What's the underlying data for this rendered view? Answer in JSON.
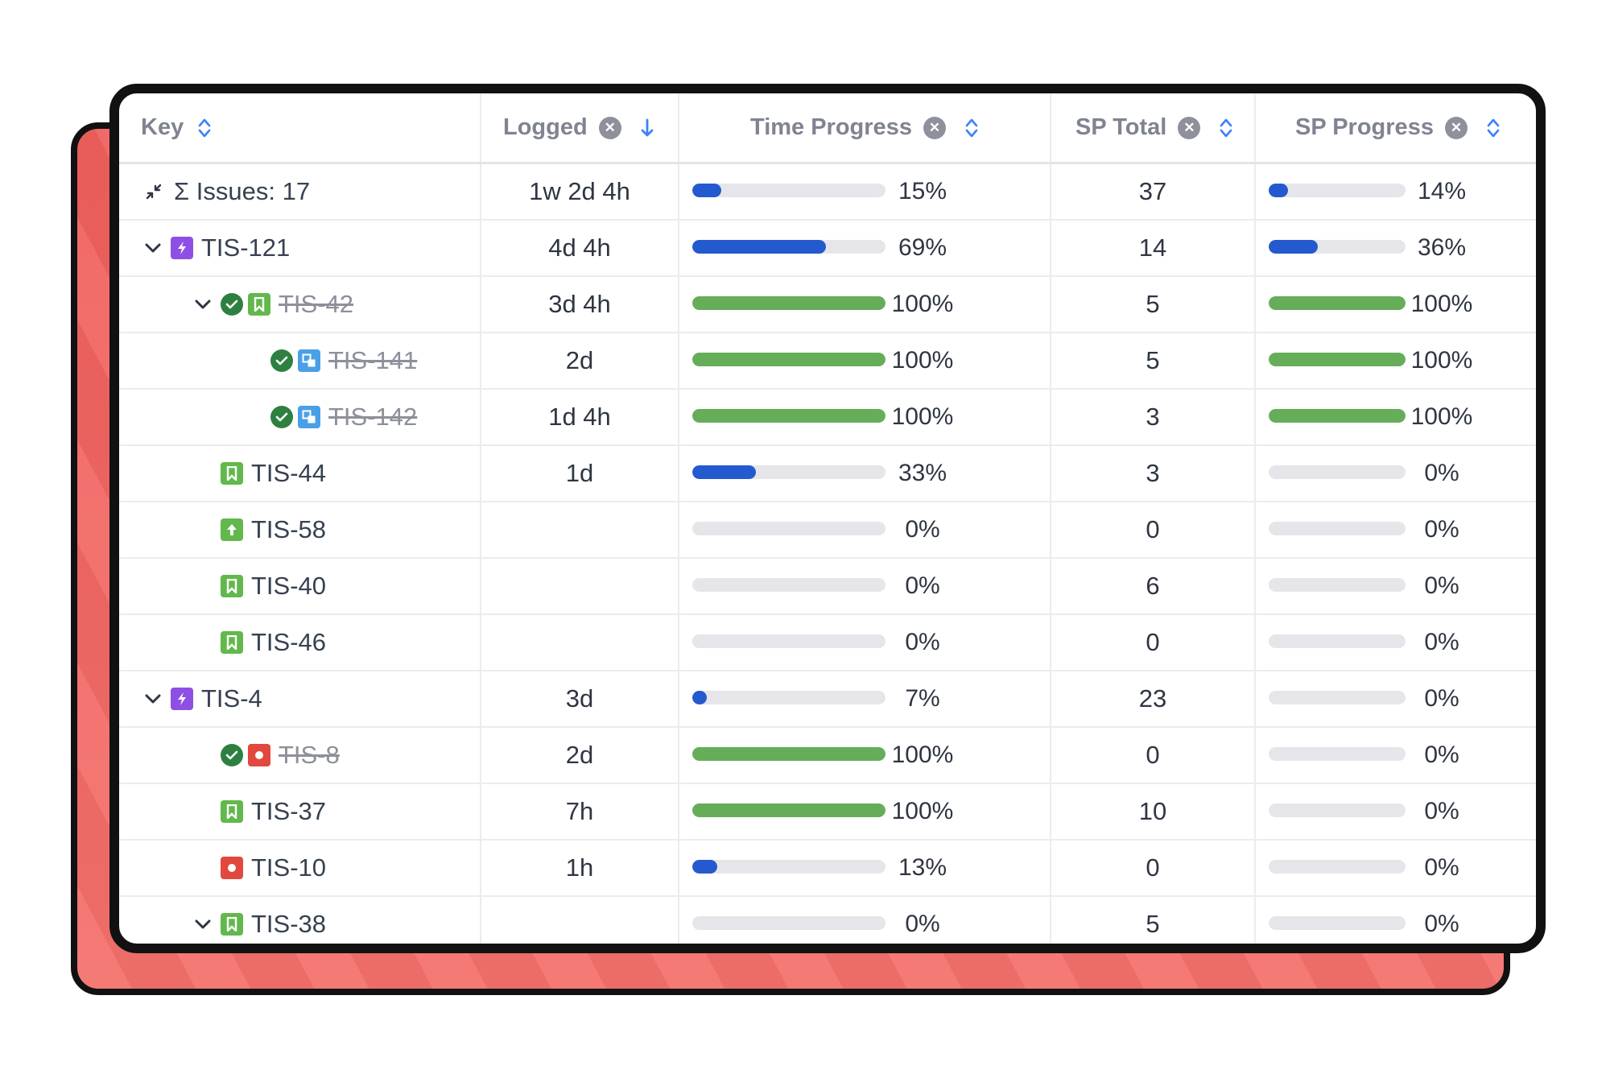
{
  "columns": {
    "key": "Key",
    "logged": "Logged",
    "time_progress": "Time Progress",
    "sp_total": "SP Total",
    "sp_progress": "SP Progress"
  },
  "summary": {
    "label": "Σ Issues: 17",
    "logged": "1w 2d 4h",
    "time_pct": "15%",
    "time_val": 15,
    "sp_total": "37",
    "sp_pct": "14%",
    "sp_val": 14
  },
  "rows": [
    {
      "key": "TIS-121",
      "indent": 1,
      "chevron": true,
      "done": false,
      "type": "epic",
      "logged": "4d 4h",
      "time_pct": "69%",
      "time_val": 69,
      "sp_total": "14",
      "sp_pct": "36%",
      "sp_val": 36
    },
    {
      "key": "TIS-42",
      "indent": 2,
      "chevron": true,
      "done": true,
      "type": "story",
      "logged": "3d 4h",
      "time_pct": "100%",
      "time_val": 100,
      "sp_total": "5",
      "sp_pct": "100%",
      "sp_val": 100
    },
    {
      "key": "TIS-141",
      "indent": 3,
      "chevron": false,
      "done": true,
      "type": "subtask",
      "logged": "2d",
      "time_pct": "100%",
      "time_val": 100,
      "sp_total": "5",
      "sp_pct": "100%",
      "sp_val": 100
    },
    {
      "key": "TIS-142",
      "indent": 3,
      "chevron": false,
      "done": true,
      "type": "subtask",
      "logged": "1d 4h",
      "time_pct": "100%",
      "time_val": 100,
      "sp_total": "3",
      "sp_pct": "100%",
      "sp_val": 100
    },
    {
      "key": "TIS-44",
      "indent": 2,
      "chevron": false,
      "done": false,
      "type": "story",
      "logged": "1d",
      "time_pct": "33%",
      "time_val": 33,
      "sp_total": "3",
      "sp_pct": "0%",
      "sp_val": 0
    },
    {
      "key": "TIS-58",
      "indent": 2,
      "chevron": false,
      "done": false,
      "type": "improve",
      "logged": "",
      "time_pct": "0%",
      "time_val": 0,
      "sp_total": "0",
      "sp_pct": "0%",
      "sp_val": 0
    },
    {
      "key": "TIS-40",
      "indent": 2,
      "chevron": false,
      "done": false,
      "type": "story",
      "logged": "",
      "time_pct": "0%",
      "time_val": 0,
      "sp_total": "6",
      "sp_pct": "0%",
      "sp_val": 0
    },
    {
      "key": "TIS-46",
      "indent": 2,
      "chevron": false,
      "done": false,
      "type": "story",
      "logged": "",
      "time_pct": "0%",
      "time_val": 0,
      "sp_total": "0",
      "sp_pct": "0%",
      "sp_val": 0
    },
    {
      "key": "TIS-4",
      "indent": 1,
      "chevron": true,
      "done": false,
      "type": "epic",
      "logged": "3d",
      "time_pct": "7%",
      "time_val": 7,
      "sp_total": "23",
      "sp_pct": "0%",
      "sp_val": 0
    },
    {
      "key": "TIS-8",
      "indent": 2,
      "chevron": false,
      "done": true,
      "type": "bug",
      "logged": "2d",
      "time_pct": "100%",
      "time_val": 100,
      "sp_total": "0",
      "sp_pct": "0%",
      "sp_val": 0
    },
    {
      "key": "TIS-37",
      "indent": 2,
      "chevron": false,
      "done": false,
      "type": "story",
      "logged": "7h",
      "time_pct": "100%",
      "time_val": 100,
      "sp_total": "10",
      "sp_pct": "0%",
      "sp_val": 0
    },
    {
      "key": "TIS-10",
      "indent": 2,
      "chevron": false,
      "done": false,
      "type": "bug",
      "logged": "1h",
      "time_pct": "13%",
      "time_val": 13,
      "sp_total": "0",
      "sp_pct": "0%",
      "sp_val": 0
    },
    {
      "key": "TIS-38",
      "indent": 2,
      "chevron": true,
      "done": false,
      "type": "story",
      "logged": "",
      "time_pct": "0%",
      "time_val": 0,
      "sp_total": "5",
      "sp_pct": "0%",
      "sp_val": 0
    }
  ],
  "colors": {
    "accent_blue": "#2559cf",
    "complete_green": "#66ad59",
    "track": "#e6e6ea",
    "card_red": "#ef5f5c"
  }
}
